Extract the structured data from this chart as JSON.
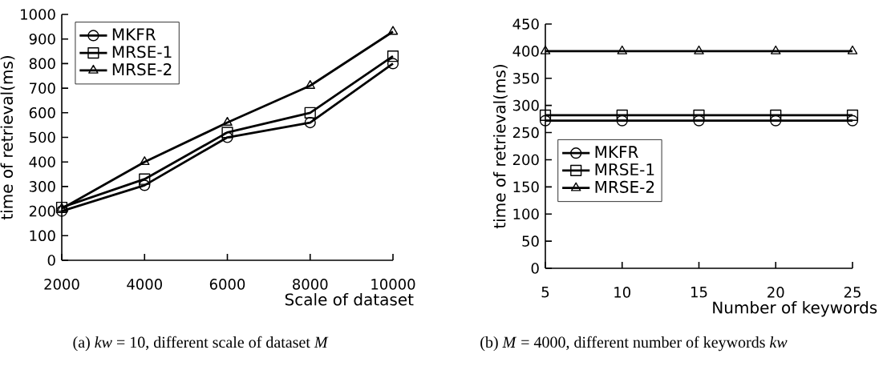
{
  "chart_data": [
    {
      "type": "line",
      "x": [
        2000,
        4000,
        6000,
        8000,
        10000
      ],
      "xlim": [
        2000,
        10000
      ],
      "xticks": [
        2000,
        4000,
        6000,
        8000,
        10000
      ],
      "ylim": [
        0,
        1000
      ],
      "yticks": [
        0,
        100,
        200,
        300,
        400,
        500,
        600,
        700,
        800,
        900,
        1000
      ],
      "xlabel": "Scale of dataset",
      "ylabel": "time of retrieval(ms)",
      "legend": "top left",
      "line_style": "solid",
      "annotations": [
        "(a) *kw* = 10, different scale of dataset *M*"
      ],
      "series": [
        {
          "name": "MKFR",
          "color": "#000000",
          "marker": "circle",
          "values": [
            200,
            305,
            500,
            560,
            800
          ]
        },
        {
          "name": "MRSE-1",
          "color": "#000000",
          "marker": "square",
          "values": [
            215,
            330,
            520,
            600,
            830
          ]
        },
        {
          "name": "MRSE-2",
          "color": "#000000",
          "marker": "triangle",
          "values": [
            210,
            400,
            560,
            710,
            930
          ]
        }
      ]
    },
    {
      "type": "line",
      "x": [
        5,
        10,
        15,
        20,
        25
      ],
      "xlim": [
        5,
        25
      ],
      "xticks": [
        5,
        10,
        15,
        20,
        25
      ],
      "ylim": [
        0,
        450
      ],
      "yticks": [
        0,
        50,
        100,
        150,
        200,
        250,
        300,
        350,
        400,
        450
      ],
      "xlabel": "Number of keywords",
      "ylabel": "time of retrieval(ms)",
      "legend": "left",
      "line_style": "solid",
      "annotations": [
        "(b) *M* = 4000, different number of keywords *kw*"
      ],
      "series": [
        {
          "name": "MKFR",
          "color": "#000000",
          "marker": "circle",
          "values": [
            272,
            272,
            272,
            272,
            272
          ]
        },
        {
          "name": "MRSE-1",
          "color": "#000000",
          "marker": "square",
          "values": [
            282,
            282,
            282,
            282,
            282
          ]
        },
        {
          "name": "MRSE-2",
          "color": "#000000",
          "marker": "triangle",
          "values": [
            400,
            400,
            400,
            400,
            400
          ]
        }
      ]
    }
  ]
}
